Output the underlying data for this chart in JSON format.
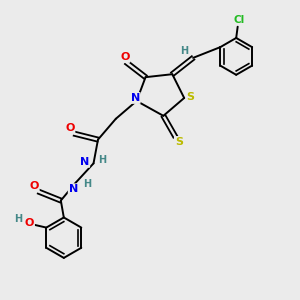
{
  "background_color": "#ebebeb",
  "bond_color": "#000000",
  "atom_colors": {
    "N": "#0000ee",
    "O": "#ee0000",
    "S": "#bbbb00",
    "Cl": "#22bb22",
    "H": "#448888",
    "C": "#000000"
  }
}
